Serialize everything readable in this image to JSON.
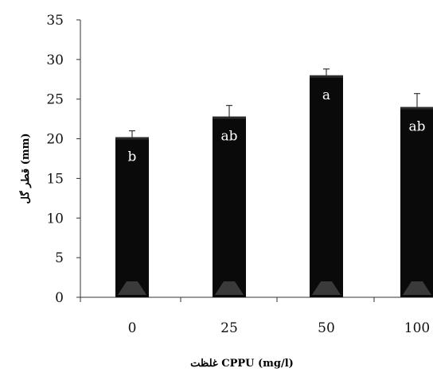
{
  "chart_data": {
    "type": "bar",
    "categories": [
      "0",
      "25",
      "50",
      "100"
    ],
    "values": [
      20.2,
      22.8,
      28.0,
      24.0
    ],
    "error_bars": [
      0.8,
      1.4,
      0.8,
      1.7
    ],
    "bar_labels": [
      "b",
      "ab",
      "a",
      "ab"
    ],
    "xlabel": "غلظت CPPU (mg/l)",
    "ylabel": "قطر گل (mm)",
    "ylim": [
      0,
      35
    ],
    "yticks": [
      "0",
      "5",
      "10",
      "15",
      "20",
      "25",
      "30",
      "35"
    ],
    "grid": false,
    "legend": "none",
    "bar_color": "#0a0a0a",
    "label_color": "#ffffff"
  }
}
